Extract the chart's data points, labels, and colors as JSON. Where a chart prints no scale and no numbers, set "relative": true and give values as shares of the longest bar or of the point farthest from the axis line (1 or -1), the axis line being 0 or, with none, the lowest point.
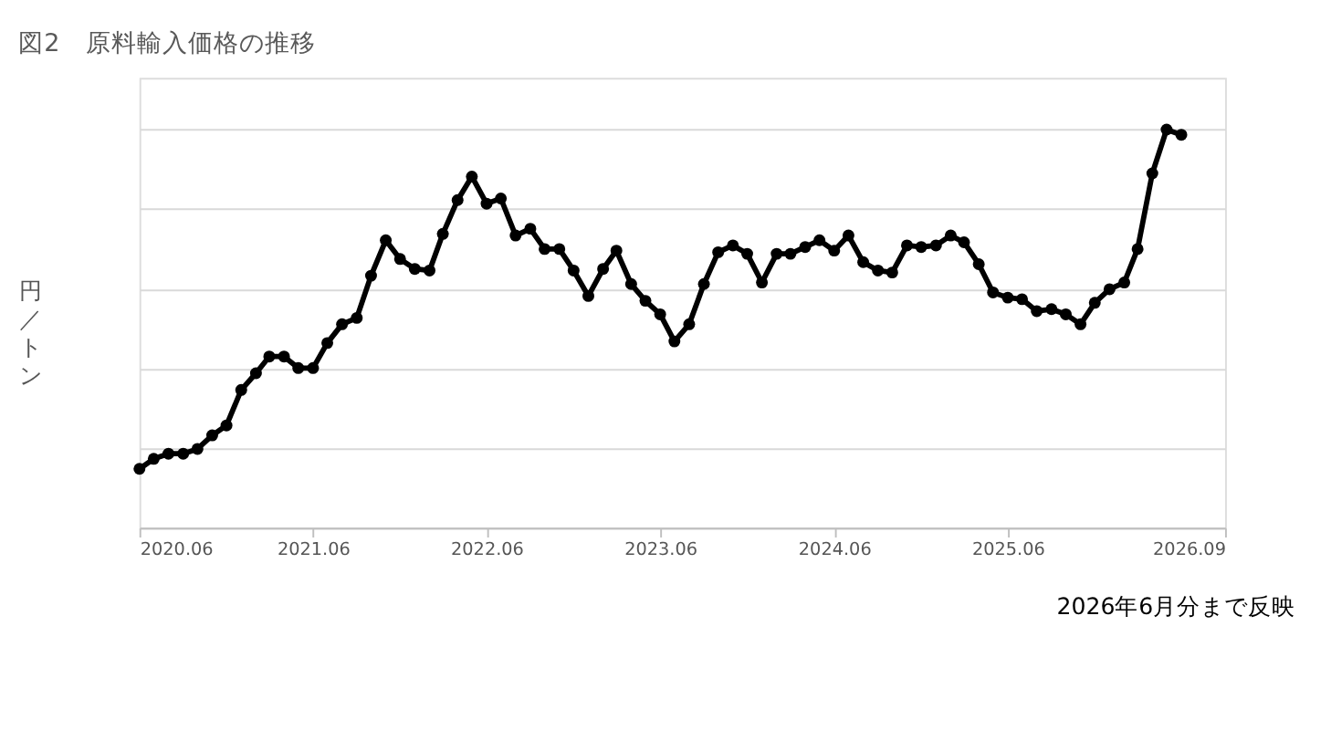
{
  "chart_data": {
    "type": "line",
    "title": "図2　原料輸入価格の推移",
    "ylabel": "円／トン",
    "relative": true,
    "x": [
      "2020-06",
      "2020-07",
      "2020-08",
      "2020-09",
      "2020-10",
      "2020-11",
      "2020-12",
      "2021-01",
      "2021-02",
      "2021-03",
      "2021-04",
      "2021-05",
      "2021-06",
      "2021-07",
      "2021-08",
      "2021-09",
      "2021-10",
      "2021-11",
      "2021-12",
      "2022-01",
      "2022-02",
      "2022-03",
      "2022-04",
      "2022-05",
      "2022-06",
      "2022-07",
      "2022-08",
      "2022-09",
      "2022-10",
      "2022-11",
      "2022-12",
      "2023-01",
      "2023-02",
      "2023-03",
      "2023-04",
      "2023-05",
      "2023-06",
      "2023-07",
      "2023-08",
      "2023-09",
      "2023-10",
      "2023-11",
      "2023-12",
      "2024-01",
      "2024-02",
      "2024-03",
      "2024-04",
      "2024-05",
      "2024-06",
      "2024-07",
      "2024-08",
      "2024-09",
      "2024-10",
      "2024-11",
      "2024-12",
      "2025-01",
      "2025-02",
      "2025-03",
      "2025-04",
      "2025-05",
      "2025-06",
      "2025-07",
      "2025-08",
      "2025-09",
      "2025-10",
      "2025-11",
      "2025-12",
      "2026-01",
      "2026-02",
      "2026-03",
      "2026-04",
      "2026-05",
      "2026-06"
    ],
    "series": [
      {
        "color": "#000000",
        "values": [
          0.148,
          0.173,
          0.186,
          0.186,
          0.198,
          0.232,
          0.257,
          0.346,
          0.388,
          0.43,
          0.43,
          0.401,
          0.401,
          0.464,
          0.511,
          0.527,
          0.633,
          0.722,
          0.675,
          0.65,
          0.646,
          0.738,
          0.823,
          0.882,
          0.814,
          0.827,
          0.734,
          0.751,
          0.7,
          0.7,
          0.646,
          0.582,
          0.65,
          0.696,
          0.612,
          0.57,
          0.536,
          0.468,
          0.511,
          0.612,
          0.692,
          0.709,
          0.688,
          0.616,
          0.688,
          0.688,
          0.705,
          0.722,
          0.696,
          0.734,
          0.667,
          0.646,
          0.641,
          0.709,
          0.705,
          0.709,
          0.734,
          0.717,
          0.662,
          0.591,
          0.578,
          0.574,
          0.544,
          0.549,
          0.536,
          0.511,
          0.565,
          0.599,
          0.616,
          0.7,
          0.89,
          1.0,
          0.987
        ]
      }
    ],
    "xlim": [
      "2020-06",
      "2026-09"
    ],
    "xticks": [
      {
        "value": "2020-06",
        "label": "2020.06"
      },
      {
        "value": "2021-06",
        "label": "2021.06"
      },
      {
        "value": "2022-06",
        "label": "2022.06"
      },
      {
        "value": "2023-06",
        "label": "2023.06"
      },
      {
        "value": "2024-06",
        "label": "2024.06"
      },
      {
        "value": "2025-06",
        "label": "2025.06"
      },
      {
        "value": "2026-09",
        "label": "2026.09"
      }
    ],
    "grid": "y",
    "marker": "circle",
    "line_style": "solid",
    "legend": false,
    "annotations": [
      "2026年6月分まで反映"
    ]
  }
}
